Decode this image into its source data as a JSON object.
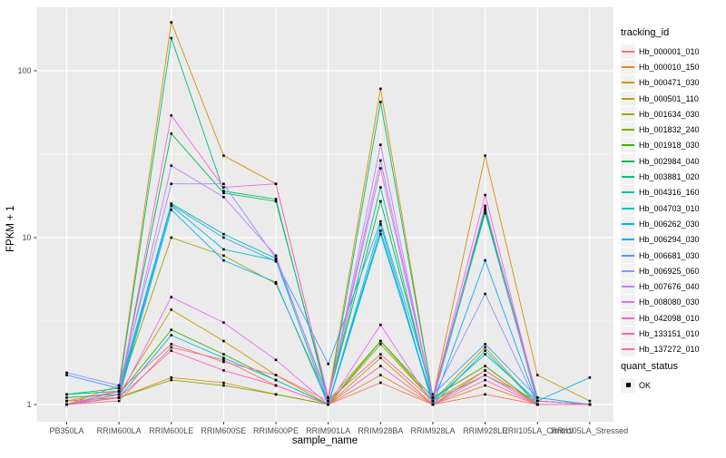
{
  "chart_data": {
    "type": "line",
    "xlabel": "sample_name",
    "ylabel": "FPKM + 1",
    "yscale": "log10",
    "ytick_labels": [
      "1",
      "10",
      "100"
    ],
    "yticks": [
      1,
      10,
      100
    ],
    "minor_yticks": [
      3.162,
      31.62
    ],
    "ylim": [
      0.79,
      240
    ],
    "grid": "white-on-gray",
    "legend_title": "tracking_id",
    "legend_position": "right",
    "panel_background": "#EBEBEB",
    "gridline_color": "#FFFFFF",
    "key_background": "#F2F2F2",
    "tick_label_color": "#4D4D4D",
    "point_marker": "black-square",
    "categories": [
      "PB350LA",
      "RRIM600LA",
      "RRIM600LE",
      "RRIM600SE",
      "RRIM600PE",
      "RRIM901LA",
      "RRIM928BA",
      "RRIM928LA",
      "RRIM928LE",
      "RRII105LA_Control",
      "RRII105LA_Stressed"
    ],
    "series": [
      {
        "name": "Hb_000001_010",
        "color": "#F8766D",
        "values": [
          1.0,
          1.05,
          2.2,
          1.85,
          1.3,
          1.0,
          1.35,
          1.0,
          1.15,
          1.0,
          1.0
        ]
      },
      {
        "name": "Hb_000010_150",
        "color": "#E88526",
        "values": [
          1.0,
          1.1,
          1.45,
          1.35,
          1.15,
          1.0,
          1.5,
          1.0,
          1.3,
          1.0,
          1.0
        ]
      },
      {
        "name": "Hb_000471_030",
        "color": "#D89000",
        "values": [
          1.0,
          1.3,
          195,
          31,
          21,
          1.1,
          78,
          1.1,
          31,
          1.5,
          1.05
        ]
      },
      {
        "name": "Hb_000501_110",
        "color": "#C09B00",
        "values": [
          1.0,
          1.15,
          3.7,
          2.4,
          1.5,
          1.0,
          1.9,
          1.0,
          1.6,
          1.0,
          1.0
        ]
      },
      {
        "name": "Hb_001634_030",
        "color": "#A3A500",
        "values": [
          1.0,
          1.2,
          10,
          7.8,
          5.3,
          1.05,
          2.4,
          1.05,
          2.2,
          1.0,
          1.0
        ]
      },
      {
        "name": "Hb_001832_240",
        "color": "#7CAE00",
        "values": [
          1.05,
          1.1,
          1.4,
          1.3,
          1.15,
          1.0,
          2.3,
          1.05,
          1.5,
          1.05,
          1.0
        ]
      },
      {
        "name": "Hb_001918_030",
        "color": "#39B600",
        "values": [
          1.1,
          1.15,
          2.8,
          2.0,
          1.4,
          1.0,
          2.4,
          1.1,
          1.7,
          1.0,
          1.0
        ]
      },
      {
        "name": "Hb_002984_040",
        "color": "#00BB4E",
        "values": [
          1.0,
          1.2,
          42,
          18.5,
          16.5,
          1.1,
          16.5,
          1.1,
          14.5,
          1.05,
          1.0
        ]
      },
      {
        "name": "Hb_003881_020",
        "color": "#00BF7D",
        "values": [
          1.15,
          1.25,
          157,
          19,
          17,
          1.05,
          65,
          1.1,
          15,
          1.1,
          1.0
        ]
      },
      {
        "name": "Hb_004316_160",
        "color": "#00C1A3",
        "values": [
          1.15,
          1.2,
          16,
          10.5,
          7.5,
          1.1,
          20,
          1.05,
          14,
          1.05,
          1.0
        ]
      },
      {
        "name": "Hb_004703_010",
        "color": "#00BFC4",
        "values": [
          1.0,
          1.15,
          15.5,
          8.5,
          7.3,
          1.0,
          12,
          1.0,
          2.1,
          1.0,
          1.0
        ]
      },
      {
        "name": "Hb_006262_030",
        "color": "#00BAE0",
        "values": [
          1.0,
          1.1,
          2.6,
          1.9,
          1.4,
          1.0,
          10.5,
          1.05,
          2.0,
          1.05,
          1.45
        ]
      },
      {
        "name": "Hb_006294_030",
        "color": "#00B0F6",
        "values": [
          1.0,
          1.1,
          14.7,
          7.3,
          5.4,
          1.0,
          11,
          1.0,
          7.3,
          1.0,
          1.0
        ]
      },
      {
        "name": "Hb_006681_030",
        "color": "#35A2FF",
        "values": [
          1.5,
          1.25,
          15.7,
          10,
          7.2,
          1.75,
          12.5,
          1.15,
          2.3,
          1.1,
          1.0
        ]
      },
      {
        "name": "Hb_006925_060",
        "color": "#9590FF",
        "values": [
          1.55,
          1.3,
          21,
          21,
          7.5,
          1.1,
          29,
          1.1,
          4.6,
          1.0,
          1.0
        ]
      },
      {
        "name": "Hb_007676_040",
        "color": "#C77CFF",
        "values": [
          1.0,
          1.2,
          27,
          17.5,
          7.8,
          1.05,
          36,
          1.05,
          15.5,
          1.0,
          1.0
        ]
      },
      {
        "name": "Hb_008080_030",
        "color": "#E76BF3",
        "values": [
          1.0,
          1.1,
          4.4,
          3.1,
          1.85,
          1.0,
          3.0,
          1.0,
          1.5,
          1.0,
          1.0
        ]
      },
      {
        "name": "Hb_042098_010",
        "color": "#FA62DB",
        "values": [
          1.0,
          1.15,
          54,
          20,
          21,
          1.1,
          26,
          1.1,
          18,
          1.05,
          1.0
        ]
      },
      {
        "name": "Hb_133151_010",
        "color": "#FF62BC",
        "values": [
          1.0,
          1.1,
          2.1,
          1.6,
          1.3,
          1.0,
          1.7,
          1.0,
          1.4,
          1.0,
          1.0
        ]
      },
      {
        "name": "Hb_137272_010",
        "color": "#FF6A98",
        "values": [
          1.05,
          1.2,
          2.3,
          1.8,
          1.5,
          1.05,
          2.0,
          1.05,
          1.6,
          1.0,
          1.0
        ]
      }
    ],
    "quant_legend": {
      "title": "quant_status",
      "items": [
        {
          "label": "OK",
          "marker": "black-square"
        }
      ]
    }
  }
}
